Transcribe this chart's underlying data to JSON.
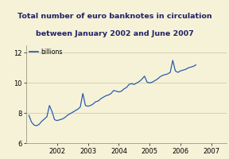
{
  "title_line1": "Total number of euro banknotes in circulation",
  "title_line2": "between January 2002 and June 2007",
  "legend_label": "billions",
  "background_color": "#f5f2d8",
  "title_bg_color": "#c8c8d0",
  "plot_bg_color": "#f5f2d8",
  "line_color": "#2255aa",
  "ylim": [
    6,
    12.5
  ],
  "yticks": [
    6,
    8,
    10,
    12
  ],
  "xtick_labels": [
    "2002",
    "2003",
    "2004",
    "2005",
    "2006",
    "2007"
  ],
  "xtick_positions": [
    12,
    24,
    36,
    48,
    60,
    72
  ],
  "xlim": [
    0,
    78
  ],
  "x_values": [
    1,
    2,
    3,
    4,
    5,
    6,
    7,
    8,
    9,
    10,
    11,
    12,
    13,
    14,
    15,
    16,
    17,
    18,
    19,
    20,
    21,
    22,
    23,
    24,
    25,
    26,
    27,
    28,
    29,
    30,
    31,
    32,
    33,
    34,
    35,
    36,
    37,
    38,
    39,
    40,
    41,
    42,
    43,
    44,
    45,
    46,
    47,
    48,
    49,
    50,
    51,
    52,
    53,
    54,
    55,
    56,
    57,
    58,
    59,
    60,
    61,
    62,
    63,
    64,
    65,
    66
  ],
  "y_values": [
    7.85,
    7.4,
    7.2,
    7.15,
    7.25,
    7.45,
    7.6,
    7.75,
    8.5,
    8.1,
    7.55,
    7.5,
    7.55,
    7.6,
    7.7,
    7.85,
    7.95,
    8.05,
    8.15,
    8.25,
    8.4,
    9.3,
    8.5,
    8.45,
    8.5,
    8.6,
    8.75,
    8.8,
    8.95,
    9.05,
    9.15,
    9.2,
    9.3,
    9.5,
    9.45,
    9.4,
    9.45,
    9.6,
    9.7,
    9.9,
    9.95,
    9.9,
    10.0,
    10.1,
    10.25,
    10.45,
    10.05,
    10.0,
    10.05,
    10.15,
    10.25,
    10.4,
    10.5,
    10.55,
    10.6,
    10.7,
    11.5,
    10.8,
    10.7,
    10.8,
    10.85,
    10.9,
    11.0,
    11.05,
    11.1,
    11.2
  ]
}
